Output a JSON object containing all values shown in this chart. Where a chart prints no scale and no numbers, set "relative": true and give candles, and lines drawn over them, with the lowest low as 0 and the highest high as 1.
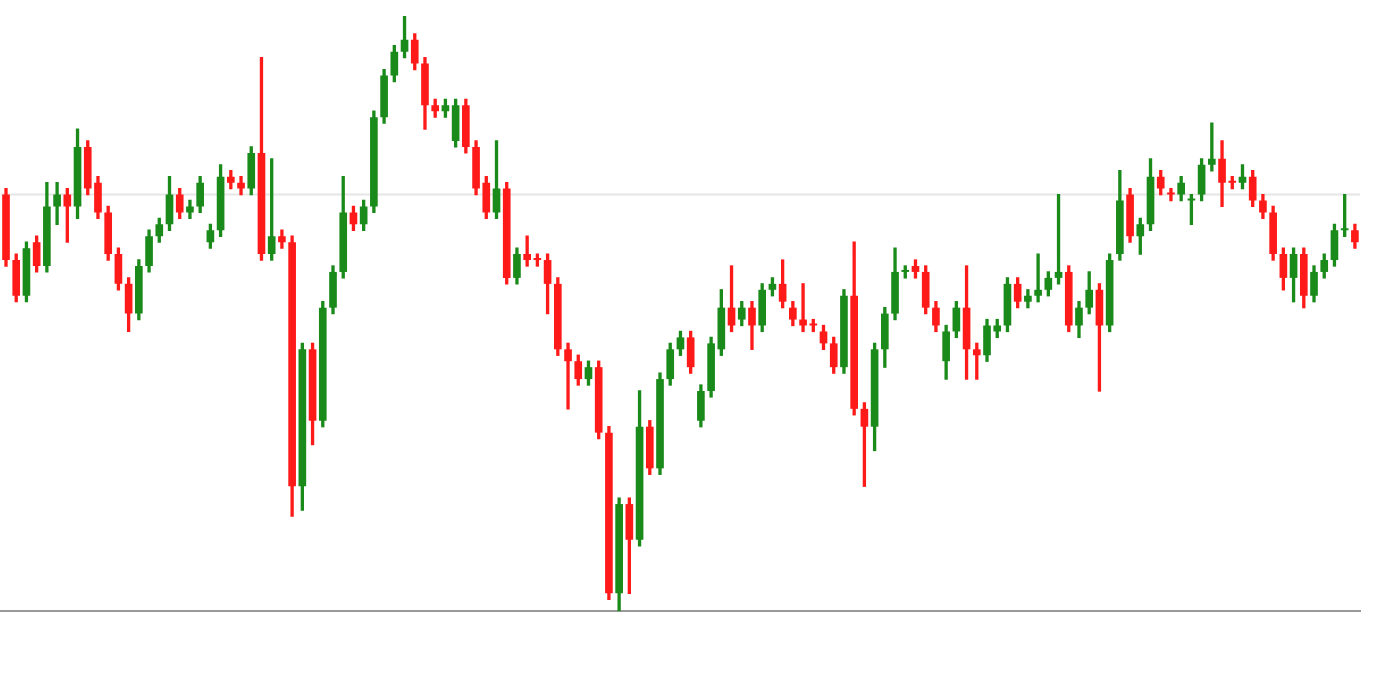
{
  "chart_data": {
    "type": "candlestick",
    "relative": true,
    "grid": false,
    "legend": false,
    "categories": [
      null,
      null,
      null,
      null,
      null,
      null,
      null,
      null,
      null,
      null,
      null,
      null,
      null,
      null,
      null,
      null,
      null,
      null,
      null,
      null,
      null,
      null,
      null,
      null,
      null,
      null,
      null,
      null,
      null,
      null,
      null,
      null,
      null,
      null,
      null,
      null,
      null,
      null,
      null,
      null,
      null,
      null,
      null,
      null,
      null,
      null,
      null,
      null,
      null,
      null,
      null,
      null,
      null,
      null,
      null,
      null,
      null,
      null,
      null,
      null,
      null,
      null,
      null,
      null,
      null,
      null,
      null,
      null,
      null,
      null,
      null,
      null,
      null,
      null,
      null,
      null,
      null,
      null,
      null,
      null,
      null,
      null,
      null,
      null,
      null,
      null,
      null,
      null,
      null,
      null,
      null,
      null,
      null,
      null,
      null,
      null,
      null,
      null,
      null,
      null,
      null,
      null,
      null,
      null,
      null,
      null,
      null,
      null,
      null,
      null,
      null,
      null,
      null,
      null,
      null,
      null,
      null,
      null,
      null,
      null,
      null,
      null,
      null,
      null,
      null,
      null,
      null,
      null,
      null,
      null,
      null,
      null,
      null
    ],
    "ohlc": [
      [
        0.7,
        0.71,
        0.58,
        0.59
      ],
      [
        0.59,
        0.6,
        0.52,
        0.53
      ],
      [
        0.53,
        0.62,
        0.52,
        0.61
      ],
      [
        0.62,
        0.63,
        0.57,
        0.58
      ],
      [
        0.58,
        0.72,
        0.57,
        0.68
      ],
      [
        0.68,
        0.72,
        0.65,
        0.7
      ],
      [
        0.7,
        0.71,
        0.62,
        0.68
      ],
      [
        0.68,
        0.81,
        0.66,
        0.78
      ],
      [
        0.78,
        0.79,
        0.7,
        0.71
      ],
      [
        0.72,
        0.73,
        0.66,
        0.67
      ],
      [
        0.67,
        0.68,
        0.59,
        0.6
      ],
      [
        0.6,
        0.61,
        0.54,
        0.55
      ],
      [
        0.55,
        0.56,
        0.47,
        0.5
      ],
      [
        0.5,
        0.59,
        0.49,
        0.58
      ],
      [
        0.58,
        0.64,
        0.57,
        0.63
      ],
      [
        0.63,
        0.66,
        0.62,
        0.65
      ],
      [
        0.65,
        0.73,
        0.64,
        0.7
      ],
      [
        0.7,
        0.71,
        0.66,
        0.67
      ],
      [
        0.67,
        0.69,
        0.66,
        0.68
      ],
      [
        0.68,
        0.73,
        0.67,
        0.72
      ],
      [
        0.62,
        0.65,
        0.61,
        0.64
      ],
      [
        0.64,
        0.75,
        0.63,
        0.73
      ],
      [
        0.73,
        0.74,
        0.71,
        0.72
      ],
      [
        0.72,
        0.73,
        0.7,
        0.71
      ],
      [
        0.71,
        0.78,
        0.7,
        0.77
      ],
      [
        0.77,
        0.93,
        0.59,
        0.6
      ],
      [
        0.6,
        0.76,
        0.59,
        0.63
      ],
      [
        0.63,
        0.64,
        0.61,
        0.62
      ],
      [
        0.62,
        0.63,
        0.16,
        0.21
      ],
      [
        0.21,
        0.45,
        0.17,
        0.44
      ],
      [
        0.44,
        0.45,
        0.28,
        0.32
      ],
      [
        0.32,
        0.52,
        0.31,
        0.51
      ],
      [
        0.51,
        0.58,
        0.5,
        0.57
      ],
      [
        0.57,
        0.73,
        0.56,
        0.67
      ],
      [
        0.67,
        0.68,
        0.64,
        0.65
      ],
      [
        0.65,
        0.69,
        0.64,
        0.68
      ],
      [
        0.68,
        0.84,
        0.67,
        0.83
      ],
      [
        0.83,
        0.91,
        0.82,
        0.9
      ],
      [
        0.9,
        0.95,
        0.89,
        0.94
      ],
      [
        0.94,
        1,
        0.93,
        0.96
      ],
      [
        0.96,
        0.97,
        0.91,
        0.92
      ],
      [
        0.92,
        0.93,
        0.81,
        0.85
      ],
      [
        0.85,
        0.86,
        0.83,
        0.84
      ],
      [
        0.84,
        0.86,
        0.83,
        0.85
      ],
      [
        0.79,
        0.86,
        0.78,
        0.85
      ],
      [
        0.85,
        0.86,
        0.77,
        0.78
      ],
      [
        0.78,
        0.79,
        0.7,
        0.71
      ],
      [
        0.72,
        0.73,
        0.66,
        0.67
      ],
      [
        0.67,
        0.79,
        0.66,
        0.71
      ],
      [
        0.71,
        0.72,
        0.55,
        0.56
      ],
      [
        0.56,
        0.61,
        0.55,
        0.6
      ],
      [
        0.6,
        0.63,
        0.58,
        0.59
      ],
      [
        0.59,
        0.6,
        0.58,
        0.59
      ],
      [
        0.59,
        0.6,
        0.5,
        0.55
      ],
      [
        0.55,
        0.56,
        0.43,
        0.44
      ],
      [
        0.44,
        0.45,
        0.34,
        0.42
      ],
      [
        0.42,
        0.43,
        0.38,
        0.39
      ],
      [
        0.39,
        0.42,
        0.38,
        0.41
      ],
      [
        0.41,
        0.42,
        0.29,
        0.3
      ],
      [
        0.3,
        0.31,
        0.02,
        0.03
      ],
      [
        0.03,
        0.19,
        0,
        0.18
      ],
      [
        0.18,
        0.19,
        0.03,
        0.12
      ],
      [
        0.12,
        0.37,
        0.11,
        0.31
      ],
      [
        0.31,
        0.32,
        0.23,
        0.24
      ],
      [
        0.24,
        0.4,
        0.23,
        0.39
      ],
      [
        0.39,
        0.45,
        0.38,
        0.44
      ],
      [
        0.44,
        0.47,
        0.43,
        0.46
      ],
      [
        0.46,
        0.47,
        0.4,
        0.41
      ],
      [
        0.32,
        0.38,
        0.31,
        0.37
      ],
      [
        0.37,
        0.46,
        0.36,
        0.45
      ],
      [
        0.44,
        0.54,
        0.43,
        0.51
      ],
      [
        0.51,
        0.58,
        0.47,
        0.48
      ],
      [
        0.49,
        0.52,
        0.48,
        0.51
      ],
      [
        0.51,
        0.52,
        0.44,
        0.48
      ],
      [
        0.48,
        0.55,
        0.47,
        0.54
      ],
      [
        0.54,
        0.56,
        0.53,
        0.55
      ],
      [
        0.55,
        0.59,
        0.51,
        0.52
      ],
      [
        0.51,
        0.52,
        0.48,
        0.49
      ],
      [
        0.49,
        0.55,
        0.47,
        0.48
      ],
      [
        0.48,
        0.49,
        0.47,
        0.48
      ],
      [
        0.47,
        0.48,
        0.44,
        0.45
      ],
      [
        0.45,
        0.46,
        0.4,
        0.41
      ],
      [
        0.41,
        0.54,
        0.4,
        0.53
      ],
      [
        0.53,
        0.62,
        0.33,
        0.34
      ],
      [
        0.34,
        0.35,
        0.21,
        0.31
      ],
      [
        0.31,
        0.45,
        0.27,
        0.44
      ],
      [
        0.44,
        0.51,
        0.41,
        0.5
      ],
      [
        0.5,
        0.61,
        0.49,
        0.57
      ],
      [
        0.57,
        0.58,
        0.56,
        0.57
      ],
      [
        0.58,
        0.59,
        0.56,
        0.57
      ],
      [
        0.57,
        0.58,
        0.5,
        0.51
      ],
      [
        0.51,
        0.52,
        0.47,
        0.48
      ],
      [
        0.42,
        0.48,
        0.39,
        0.47
      ],
      [
        0.47,
        0.52,
        0.46,
        0.51
      ],
      [
        0.51,
        0.58,
        0.39,
        0.44
      ],
      [
        0.44,
        0.45,
        0.39,
        0.43
      ],
      [
        0.43,
        0.49,
        0.42,
        0.48
      ],
      [
        0.47,
        0.49,
        0.46,
        0.48
      ],
      [
        0.48,
        0.56,
        0.47,
        0.55
      ],
      [
        0.55,
        0.56,
        0.51,
        0.52
      ],
      [
        0.52,
        0.54,
        0.51,
        0.53
      ],
      [
        0.53,
        0.6,
        0.52,
        0.54
      ],
      [
        0.54,
        0.57,
        0.53,
        0.56
      ],
      [
        0.56,
        0.7,
        0.55,
        0.57
      ],
      [
        0.57,
        0.58,
        0.47,
        0.48
      ],
      [
        0.48,
        0.52,
        0.46,
        0.51
      ],
      [
        0.51,
        0.57,
        0.5,
        0.54
      ],
      [
        0.54,
        0.55,
        0.37,
        0.48
      ],
      [
        0.48,
        0.6,
        0.47,
        0.59
      ],
      [
        0.6,
        0.74,
        0.59,
        0.69
      ],
      [
        0.7,
        0.71,
        0.62,
        0.63
      ],
      [
        0.63,
        0.66,
        0.6,
        0.65
      ],
      [
        0.65,
        0.76,
        0.64,
        0.73
      ],
      [
        0.73,
        0.74,
        0.7,
        0.71
      ],
      [
        0.7,
        0.71,
        0.69,
        0.7
      ],
      [
        0.7,
        0.73,
        0.69,
        0.72
      ],
      [
        0.69,
        0.7,
        0.65,
        0.69
      ],
      [
        0.7,
        0.76,
        0.69,
        0.75
      ],
      [
        0.75,
        0.82,
        0.74,
        0.76
      ],
      [
        0.76,
        0.79,
        0.68,
        0.72
      ],
      [
        0.72,
        0.73,
        0.71,
        0.72
      ],
      [
        0.72,
        0.75,
        0.71,
        0.73
      ],
      [
        0.73,
        0.74,
        0.68,
        0.69
      ],
      [
        0.69,
        0.7,
        0.66,
        0.67
      ],
      [
        0.67,
        0.68,
        0.59,
        0.6
      ],
      [
        0.6,
        0.61,
        0.54,
        0.56
      ],
      [
        0.56,
        0.61,
        0.52,
        0.6
      ],
      [
        0.6,
        0.61,
        0.51,
        0.53
      ],
      [
        0.53,
        0.58,
        0.52,
        0.57
      ],
      [
        0.57,
        0.6,
        0.56,
        0.59
      ],
      [
        0.59,
        0.65,
        0.58,
        0.64
      ],
      [
        0.64,
        0.7,
        0.63,
        0.64
      ],
      [
        0.64,
        0.65,
        0.61,
        0.62
      ]
    ],
    "colors": [
      "#ff1a1a",
      "#ff1a1a",
      "#1a8a1a",
      "#ff1a1a",
      "#1a8a1a",
      "#1a8a1a",
      "#ff1a1a",
      "#1a8a1a",
      "#ff1a1a",
      "#ff1a1a",
      "#ff1a1a",
      "#ff1a1a",
      "#ff1a1a",
      "#1a8a1a",
      "#1a8a1a",
      "#1a8a1a",
      "#1a8a1a",
      "#ff1a1a",
      "#1a8a1a",
      "#1a8a1a",
      "#1a8a1a",
      "#1a8a1a",
      "#ff1a1a",
      "#ff1a1a",
      "#1a8a1a",
      "#ff1a1a",
      "#1a8a1a",
      "#ff1a1a",
      "#ff1a1a",
      "#1a8a1a",
      "#ff1a1a",
      "#1a8a1a",
      "#1a8a1a",
      "#1a8a1a",
      "#ff1a1a",
      "#1a8a1a",
      "#1a8a1a",
      "#1a8a1a",
      "#1a8a1a",
      "#1a8a1a",
      "#ff1a1a",
      "#ff1a1a",
      "#ff1a1a",
      "#1a8a1a",
      "#1a8a1a",
      "#ff1a1a",
      "#ff1a1a",
      "#ff1a1a",
      "#1a8a1a",
      "#ff1a1a",
      "#1a8a1a",
      "#ff1a1a",
      "#ff1a1a",
      "#ff1a1a",
      "#ff1a1a",
      "#ff1a1a",
      "#ff1a1a",
      "#1a8a1a",
      "#ff1a1a",
      "#ff1a1a",
      "#1a8a1a",
      "#ff1a1a",
      "#1a8a1a",
      "#ff1a1a",
      "#1a8a1a",
      "#1a8a1a",
      "#1a8a1a",
      "#ff1a1a",
      "#1a8a1a",
      "#1a8a1a",
      "#1a8a1a",
      "#ff1a1a",
      "#1a8a1a",
      "#ff1a1a",
      "#1a8a1a",
      "#1a8a1a",
      "#ff1a1a",
      "#ff1a1a",
      "#ff1a1a",
      "#ff1a1a",
      "#ff1a1a",
      "#ff1a1a",
      "#1a8a1a",
      "#ff1a1a",
      "#ff1a1a",
      "#1a8a1a",
      "#1a8a1a",
      "#1a8a1a",
      "#1a8a1a",
      "#ff1a1a",
      "#ff1a1a",
      "#ff1a1a",
      "#1a8a1a",
      "#1a8a1a",
      "#ff1a1a",
      "#ff1a1a",
      "#1a8a1a",
      "#1a8a1a",
      "#1a8a1a",
      "#ff1a1a",
      "#1a8a1a",
      "#1a8a1a",
      "#1a8a1a",
      "#1a8a1a",
      "#ff1a1a",
      "#1a8a1a",
      "#1a8a1a",
      "#ff1a1a",
      "#1a8a1a",
      "#1a8a1a",
      "#ff1a1a",
      "#1a8a1a",
      "#1a8a1a",
      "#ff1a1a",
      "#ff1a1a",
      "#1a8a1a",
      "#1a8a1a",
      "#1a8a1a",
      "#1a8a1a",
      "#ff1a1a",
      "#ff1a1a",
      "#1a8a1a",
      "#ff1a1a",
      "#ff1a1a",
      "#ff1a1a",
      "#ff1a1a",
      "#1a8a1a",
      "#ff1a1a",
      "#1a8a1a",
      "#1a8a1a",
      "#1a8a1a",
      "#1a8a1a",
      "#ff1a1a"
    ],
    "ref_lines": [
      {
        "axis": "y",
        "value": 0.7,
        "color": "#e6e6e6"
      }
    ]
  }
}
